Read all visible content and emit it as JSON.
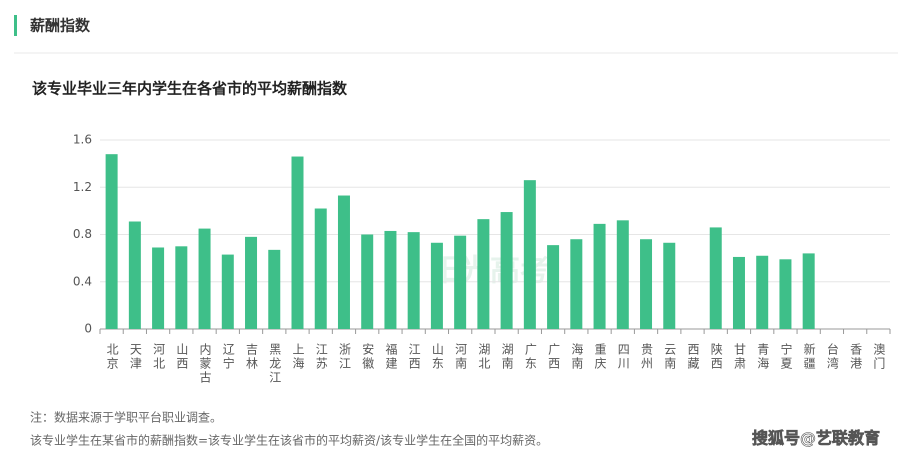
{
  "header": {
    "title": "薪酬指数"
  },
  "chart_data": {
    "type": "bar",
    "title": "该专业毕业三年内学生在各省市的平均薪酬指数",
    "categories": [
      "北京",
      "天津",
      "河北",
      "山西",
      "内蒙古",
      "辽宁",
      "吉林",
      "黑龙江",
      "上海",
      "江苏",
      "浙江",
      "安徽",
      "福建",
      "江西",
      "山东",
      "河南",
      "湖北",
      "湖南",
      "广东",
      "广西",
      "海南",
      "重庆",
      "四川",
      "贵州",
      "云南",
      "西藏",
      "陕西",
      "甘肃",
      "青海",
      "宁夏",
      "新疆",
      "台湾",
      "香港",
      "澳门"
    ],
    "values": [
      1.48,
      0.91,
      0.69,
      0.7,
      0.85,
      0.63,
      0.78,
      0.67,
      1.46,
      1.02,
      1.13,
      0.8,
      0.83,
      0.82,
      0.73,
      0.79,
      0.93,
      0.99,
      1.26,
      0.71,
      0.76,
      0.89,
      0.92,
      0.76,
      0.73,
      null,
      0.86,
      0.61,
      0.62,
      0.59,
      0.64,
      null,
      null,
      null
    ],
    "color": "#3ebf89",
    "ylim": [
      0,
      1.6
    ],
    "yticks": [
      0,
      0.4,
      0.8,
      1.2,
      1.6
    ],
    "grid": true,
    "watermark": "阳光高考"
  },
  "notes": [
    "注：数据来源于学职平台职业调查。",
    "该专业学生在某省市的薪酬指数=该专业学生在该省市的平均薪资/该专业学生在全国的平均薪资。"
  ],
  "credit": "搜狐号@艺联教育"
}
